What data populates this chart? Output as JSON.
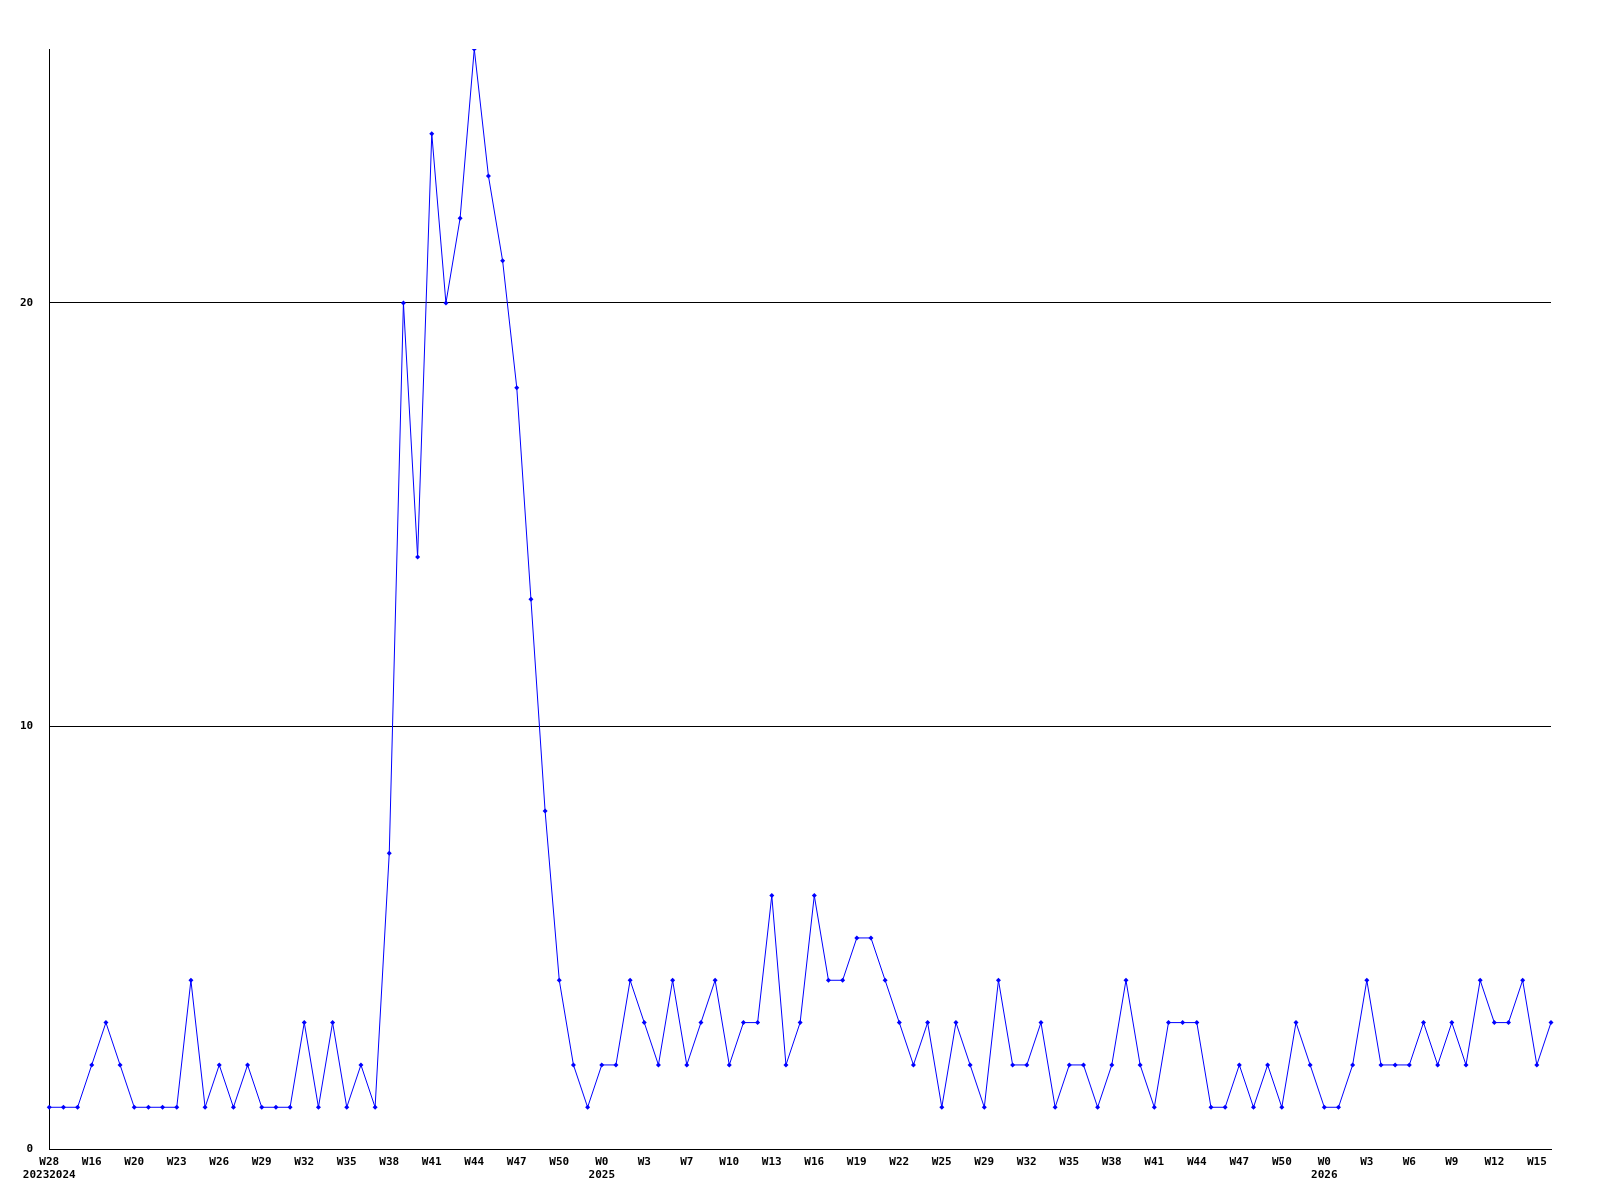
{
  "chart_data": {
    "type": "line",
    "categories": [
      "W28\n20232024",
      null,
      null,
      "W16",
      null,
      null,
      "W20",
      null,
      null,
      "W23",
      null,
      null,
      "W26",
      null,
      null,
      "W29",
      null,
      null,
      "W32",
      null,
      null,
      "W35",
      null,
      null,
      "W38",
      null,
      null,
      "W41",
      null,
      null,
      "W44",
      null,
      null,
      "W47",
      null,
      null,
      "W50",
      null,
      null,
      "W0\n2025",
      null,
      null,
      "W3",
      null,
      null,
      "W7",
      null,
      null,
      "W10",
      null,
      null,
      "W13",
      null,
      null,
      "W16",
      null,
      null,
      "W19",
      null,
      null,
      "W22",
      null,
      null,
      "W25",
      null,
      null,
      "W29",
      null,
      null,
      "W32",
      null,
      null,
      "W35",
      null,
      null,
      "W38",
      null,
      null,
      "W41",
      null,
      null,
      "W44",
      null,
      null,
      "W47",
      null,
      null,
      "W50",
      null,
      null,
      "W0\n2026",
      null,
      null,
      "W3",
      null,
      null,
      "W6",
      null,
      null,
      "W9",
      null,
      null,
      "W12",
      null,
      null,
      "W15",
      null
    ],
    "series": [
      {
        "color": "#0000ff",
        "values": [
          1,
          1,
          1,
          2,
          3,
          2,
          1,
          1,
          1,
          1,
          4,
          1,
          2,
          1,
          2,
          1,
          1,
          1,
          3,
          1,
          3,
          1,
          2,
          1,
          7,
          20,
          14,
          24,
          20,
          22,
          26,
          23,
          21,
          18,
          13,
          8,
          4,
          2,
          1,
          2,
          2,
          4,
          3,
          2,
          4,
          2,
          3,
          4,
          2,
          3,
          3,
          6,
          2,
          3,
          6,
          4,
          4,
          5,
          5,
          4,
          3,
          2,
          3,
          1,
          3,
          2,
          1,
          4,
          2,
          2,
          3,
          1,
          2,
          2,
          1,
          2,
          4,
          2,
          1,
          3,
          3,
          3,
          1,
          1,
          2,
          1,
          2,
          1,
          3,
          2,
          1,
          1,
          2,
          4,
          2,
          2,
          2,
          3,
          2,
          3,
          2,
          4,
          3,
          3,
          4,
          2,
          3
        ]
      }
    ],
    "ylim": [
      0,
      26
    ],
    "yticks": [
      0,
      10,
      20
    ],
    "grid": "y",
    "legend": false,
    "marker": "diamond",
    "line_style": "solid"
  }
}
